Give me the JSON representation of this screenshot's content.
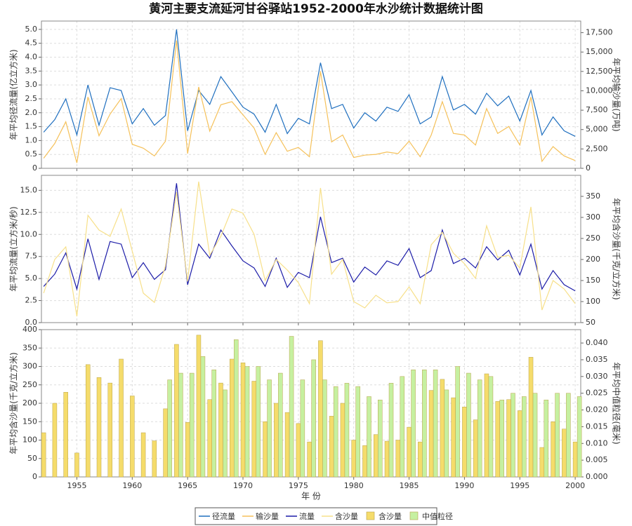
{
  "chart_data": [
    {
      "type": "line",
      "title": "黄河主要支流延河甘谷驿站1952-2000年水沙统计数据统计图",
      "ylabel": "年平均径流量(亿立方米)",
      "y2label": "年平均输沙量(万吨)",
      "x": [
        1952,
        1953,
        1954,
        1955,
        1956,
        1957,
        1958,
        1959,
        1960,
        1961,
        1962,
        1963,
        1964,
        1965,
        1966,
        1967,
        1968,
        1969,
        1970,
        1971,
        1972,
        1973,
        1974,
        1975,
        1976,
        1977,
        1978,
        1979,
        1980,
        1981,
        1982,
        1983,
        1984,
        1985,
        1986,
        1987,
        1988,
        1989,
        1990,
        1991,
        1992,
        1993,
        1994,
        1995,
        1996,
        1997,
        1998,
        1999,
        2000
      ],
      "xlim": [
        1951.8,
        2000.5
      ],
      "xticks": [
        1955,
        1960,
        1965,
        1970,
        1975,
        1980,
        1985,
        1990,
        1995,
        2000
      ],
      "ylim": [
        0,
        5.3
      ],
      "yticks": [
        0,
        {
          "value": 0.5,
          "label": "0.5"
        },
        {
          "value": 1,
          "label": "1.0"
        },
        {
          "value": 1.5,
          "label": "1.5"
        },
        {
          "value": 2,
          "label": "2.0"
        },
        {
          "value": 2.5,
          "label": "2.5"
        },
        {
          "value": 3,
          "label": "3.0"
        },
        {
          "value": 3.5,
          "label": "3.5"
        },
        {
          "value": 4,
          "label": "4.0"
        },
        {
          "value": 4.5,
          "label": "4.5"
        },
        {
          "value": 5,
          "label": "5.0"
        }
      ],
      "y2lim": [
        0,
        19000
      ],
      "y2ticks": [
        0,
        {
          "value": 2500,
          "label": "2,500"
        },
        {
          "value": 5000,
          "label": "5,000"
        },
        {
          "value": 7500,
          "label": "7,500"
        },
        {
          "value": 10000,
          "label": "10,000"
        },
        {
          "value": 12500,
          "label": "12,500"
        },
        {
          "value": 15000,
          "label": "15,000"
        },
        {
          "value": 17500,
          "label": "17,500"
        }
      ],
      "grid": true,
      "series": [
        {
          "name": "径流量",
          "color": "#1f6fbf",
          "values": [
            1.3,
            1.75,
            2.5,
            1.2,
            3.0,
            1.55,
            2.9,
            2.8,
            1.6,
            2.15,
            1.55,
            1.9,
            5.0,
            1.35,
            2.8,
            2.3,
            3.3,
            2.75,
            2.2,
            1.95,
            1.3,
            2.3,
            1.25,
            1.8,
            1.6,
            3.8,
            2.15,
            2.3,
            1.45,
            2.0,
            1.7,
            2.2,
            2.05,
            2.65,
            1.6,
            1.85,
            3.3,
            2.1,
            2.3,
            1.95,
            2.7,
            2.25,
            2.6,
            1.7,
            2.8,
            1.2,
            1.85,
            1.35,
            1.15
          ]
        },
        {
          "name": "输沙量",
          "color": "#f5c15a",
          "axis": "y2",
          "values": [
            1300,
            3200,
            6000,
            700,
            9200,
            4200,
            7000,
            9000,
            3100,
            2600,
            1600,
            3500,
            16500,
            1900,
            10500,
            4800,
            8200,
            8600,
            6900,
            5200,
            1800,
            4600,
            2200,
            2700,
            1500,
            12500,
            3400,
            4300,
            1400,
            1700,
            1800,
            2100,
            1900,
            3500,
            1500,
            4300,
            8600,
            4500,
            4300,
            3000,
            7700,
            4500,
            5400,
            3000,
            9200,
            900,
            2800,
            1600,
            1000
          ]
        }
      ]
    },
    {
      "type": "line",
      "ylabel": "年平均流量(立方米/秒)",
      "y2label": "年平均含沙量(千克/立方米)",
      "x": [
        1952,
        1953,
        1954,
        1955,
        1956,
        1957,
        1958,
        1959,
        1960,
        1961,
        1962,
        1963,
        1964,
        1965,
        1966,
        1967,
        1968,
        1969,
        1970,
        1971,
        1972,
        1973,
        1974,
        1975,
        1976,
        1977,
        1978,
        1979,
        1980,
        1981,
        1982,
        1983,
        1984,
        1985,
        1986,
        1987,
        1988,
        1989,
        1990,
        1991,
        1992,
        1993,
        1994,
        1995,
        1996,
        1997,
        1998,
        1999,
        2000
      ],
      "xlim": [
        1951.8,
        2000.5
      ],
      "xticks": [
        1955,
        1960,
        1965,
        1970,
        1975,
        1980,
        1985,
        1990,
        1995,
        2000
      ],
      "ylim": [
        0,
        16.7
      ],
      "yticks": [
        {
          "value": 0,
          "label": "0.0"
        },
        {
          "value": 2.5,
          "label": "2.5"
        },
        {
          "value": 5,
          "label": "5.0"
        },
        {
          "value": 7.5,
          "label": "7.5"
        },
        {
          "value": 10,
          "label": "10.0"
        },
        {
          "value": 12.5,
          "label": "12.5"
        },
        {
          "value": 15,
          "label": "15.0"
        }
      ],
      "y2lim": [
        50,
        400
      ],
      "y2ticks": [
        50,
        100,
        150,
        200,
        250,
        300,
        350
      ],
      "grid": true,
      "series": [
        {
          "name": "流量",
          "color": "#1c1ca8",
          "values": [
            4.1,
            5.5,
            7.9,
            3.8,
            9.5,
            4.9,
            9.2,
            8.9,
            5.1,
            6.8,
            4.9,
            6.0,
            15.8,
            4.3,
            8.9,
            7.3,
            10.5,
            8.7,
            7.0,
            6.2,
            4.1,
            7.3,
            4.0,
            5.7,
            5.1,
            12.0,
            6.8,
            7.3,
            4.6,
            6.3,
            5.4,
            7.0,
            6.5,
            8.4,
            5.1,
            5.9,
            10.5,
            6.7,
            7.3,
            6.2,
            8.6,
            7.1,
            8.2,
            5.4,
            8.9,
            3.8,
            5.9,
            4.3,
            3.6
          ]
        },
        {
          "name": "含沙量",
          "color": "#f7e08a",
          "axis": "y2",
          "values": [
            120,
            200,
            230,
            65,
            305,
            270,
            255,
            320,
            220,
            120,
            98,
            185,
            360,
            148,
            385,
            210,
            255,
            320,
            310,
            260,
            150,
            200,
            175,
            145,
            95,
            370,
            165,
            200,
            100,
            85,
            115,
            97,
            100,
            135,
            95,
            235,
            265,
            215,
            190,
            155,
            280,
            205,
            210,
            180,
            325,
            80,
            150,
            130,
            95
          ]
        }
      ]
    },
    {
      "type": "bar",
      "ylabel": "年平均含沙量(千克/立方米)",
      "y2label": "年平均中值粒径(毫米)",
      "xlabel": "年 份",
      "x": [
        1952,
        1953,
        1954,
        1955,
        1956,
        1957,
        1958,
        1959,
        1960,
        1961,
        1962,
        1963,
        1964,
        1965,
        1966,
        1967,
        1968,
        1969,
        1970,
        1971,
        1972,
        1973,
        1974,
        1975,
        1976,
        1977,
        1978,
        1979,
        1980,
        1981,
        1982,
        1983,
        1984,
        1985,
        1986,
        1987,
        1988,
        1989,
        1990,
        1991,
        1992,
        1993,
        1994,
        1995,
        1996,
        1997,
        1998,
        1999,
        2000
      ],
      "xlim": [
        1951.8,
        2000.5
      ],
      "xticks": [
        1955,
        1960,
        1965,
        1970,
        1975,
        1980,
        1985,
        1990,
        1995,
        2000
      ],
      "ylim": [
        0,
        400
      ],
      "yticks": [
        0,
        50,
        100,
        150,
        200,
        250,
        300,
        350,
        400
      ],
      "y2lim": [
        0,
        0.044
      ],
      "y2ticks": [
        {
          "value": 0,
          "label": "0.000"
        },
        {
          "value": 0.005,
          "label": "0.005"
        },
        {
          "value": 0.01,
          "label": "0.010"
        },
        {
          "value": 0.015,
          "label": "0.015"
        },
        {
          "value": 0.02,
          "label": "0.020"
        },
        {
          "value": 0.025,
          "label": "0.025"
        },
        {
          "value": 0.03,
          "label": "0.030"
        },
        {
          "value": 0.035,
          "label": "0.035"
        },
        {
          "value": 0.04,
          "label": "0.040"
        }
      ],
      "grid": true,
      "series": [
        {
          "name": "含沙量",
          "color": "#f5dc6b",
          "values": [
            120,
            200,
            230,
            65,
            305,
            270,
            255,
            320,
            220,
            120,
            98,
            185,
            360,
            148,
            385,
            210,
            255,
            320,
            310,
            260,
            150,
            200,
            175,
            145,
            95,
            370,
            165,
            200,
            100,
            85,
            115,
            97,
            100,
            135,
            95,
            235,
            265,
            215,
            190,
            155,
            280,
            205,
            210,
            180,
            325,
            80,
            150,
            130,
            95
          ]
        },
        {
          "name": "中值粒径",
          "color": "#c6f0a0",
          "axis": "y2",
          "values": [
            null,
            null,
            null,
            null,
            null,
            null,
            null,
            null,
            null,
            null,
            null,
            0.029,
            0.031,
            0.031,
            0.036,
            0.032,
            0.026,
            0.041,
            0.033,
            0.033,
            0.029,
            0.031,
            0.042,
            0.029,
            0.035,
            0.029,
            0.027,
            0.028,
            0.027,
            0.024,
            0.023,
            0.028,
            0.03,
            0.032,
            0.032,
            0.032,
            0.026,
            0.033,
            0.031,
            0.029,
            0.03,
            0.023,
            0.025,
            0.024,
            0.025,
            0.023,
            0.025,
            0.025,
            0.024
          ]
        }
      ]
    }
  ]
}
